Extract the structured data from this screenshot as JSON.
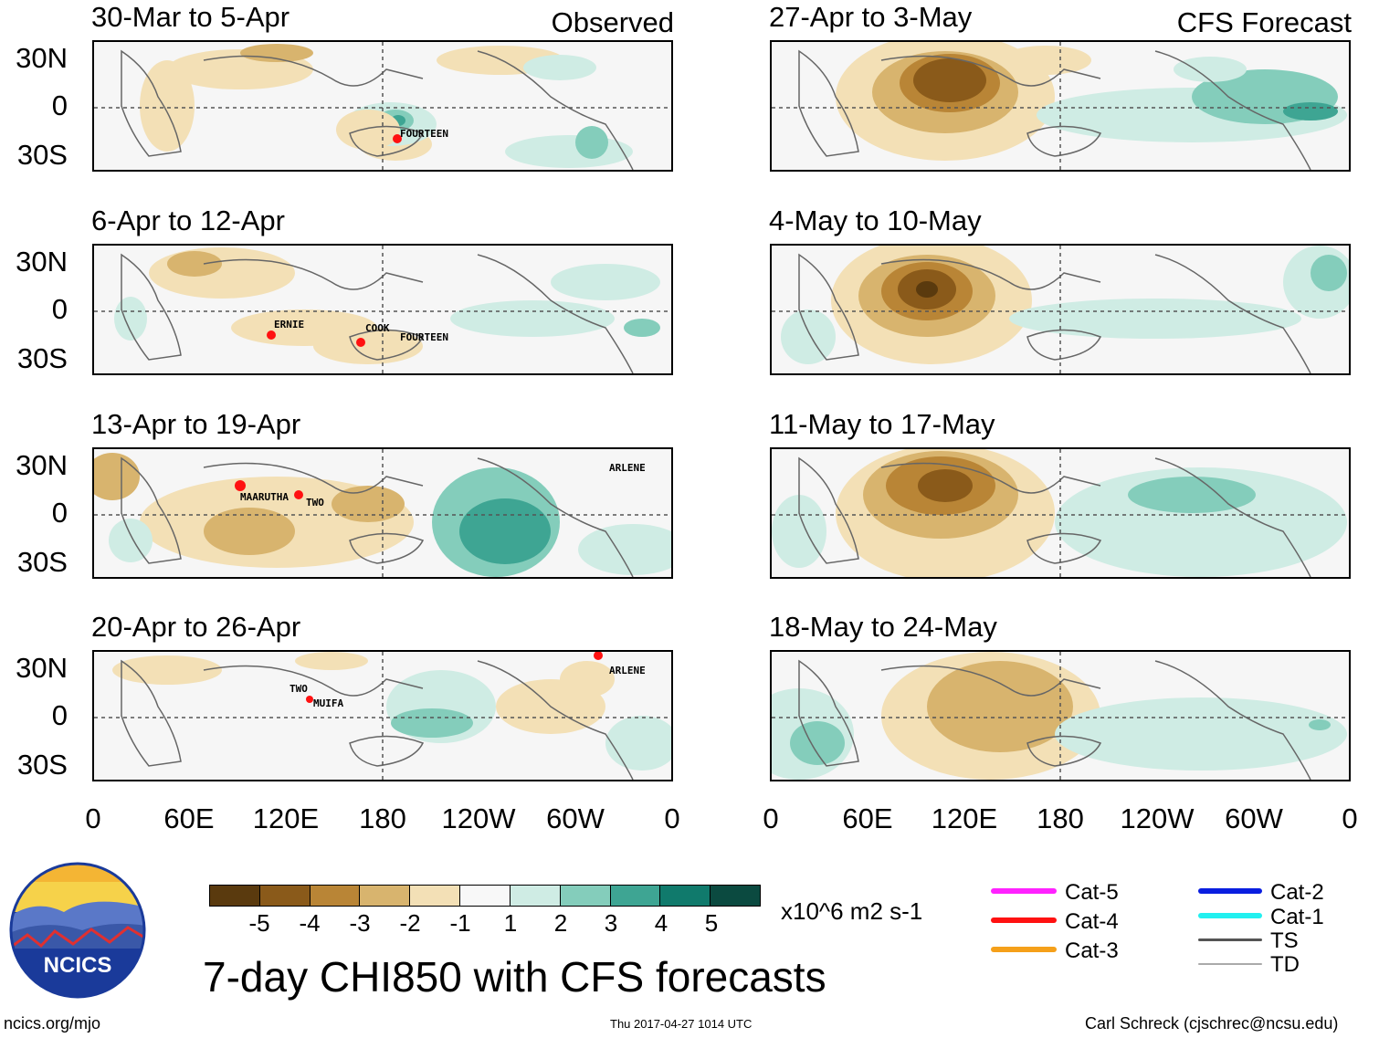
{
  "headers": {
    "observed": "Observed",
    "forecast": "CFS Forecast"
  },
  "panels": {
    "observed": [
      {
        "title": "30-Mar to 5-Apr",
        "storms": [
          {
            "name": "FOURTEEN"
          }
        ]
      },
      {
        "title": "6-Apr to 12-Apr",
        "storms": [
          {
            "name": "ERNIE"
          },
          {
            "name": "COOK"
          },
          {
            "name": "FOURTEEN"
          }
        ]
      },
      {
        "title": "13-Apr to 19-Apr",
        "storms": [
          {
            "name": "MAARUTHA"
          },
          {
            "name": "TWO"
          },
          {
            "name": "ARLENE"
          }
        ]
      },
      {
        "title": "20-Apr to 26-Apr",
        "storms": [
          {
            "name": "TWO"
          },
          {
            "name": "MUIFA"
          },
          {
            "name": "ARLENE"
          }
        ]
      }
    ],
    "forecast": [
      {
        "title": "27-Apr to 3-May"
      },
      {
        "title": "4-May to 10-May"
      },
      {
        "title": "11-May to 17-May"
      },
      {
        "title": "18-May to 24-May"
      }
    ]
  },
  "lat_labels": [
    "30N",
    "0",
    "30S"
  ],
  "lon_labels": [
    "0",
    "60E",
    "120E",
    "180",
    "120W",
    "60W",
    "0"
  ],
  "colorbar": {
    "colors": [
      "#5a3a0e",
      "#8a5a1a",
      "#b98536",
      "#d8b46e",
      "#f3e0b6",
      "#f8f8f8",
      "#cfece4",
      "#84cdbb",
      "#3ea593",
      "#107a6c",
      "#0b4a40"
    ],
    "labels": [
      "-5",
      "-4",
      "-3",
      "-2",
      "-1",
      "1",
      "2",
      "3",
      "4",
      "5"
    ],
    "units": "x10^6 m2 s-1"
  },
  "legend": [
    {
      "label": "Cat-5",
      "color": "#ff22ff"
    },
    {
      "label": "Cat-4",
      "color": "#ff1111"
    },
    {
      "label": "Cat-3",
      "color": "#f5a01a"
    },
    {
      "label": "Cat-2",
      "color": "#0a1ee0"
    },
    {
      "label": "Cat-1",
      "color": "#22f0f0"
    },
    {
      "label": "TS",
      "color": "#555555"
    },
    {
      "label": "TD",
      "color": "#aaaaaa"
    }
  ],
  "logo": {
    "text": "NCICS"
  },
  "main_title": "7-day CHI850 with CFS forecasts",
  "footer": {
    "url": "ncics.org/mjo",
    "timestamp": "Thu 2017-04-27 1014 UTC",
    "author": "Carl Schreck (cjschrec@ncsu.edu)"
  }
}
